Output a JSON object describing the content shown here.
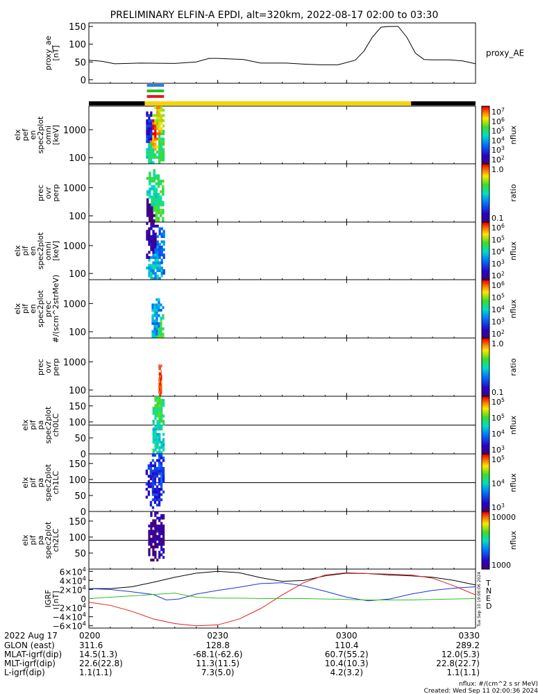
{
  "title": "PRELIMINARY ELFIN-A EPDI, alt=320km, 2022-08-17 02:00 to 03:30",
  "colors": {
    "proxy_line": "#000000",
    "black_bar": "#000000",
    "yellow_bar": "#f5d400",
    "mode_bars": [
      "#2a7de1",
      "#23c41a",
      "#e21c1c"
    ],
    "hline": "#000000",
    "b_total": "#000000",
    "b_n": "#1f2ee0",
    "b_e": "#e21c1c",
    "b_d": "#2cc01e"
  },
  "ephemeris": {
    "date_label": "2022 Aug 17",
    "rows": [
      {
        "label": "GLON (east)",
        "values": [
          "311.6",
          "128.8",
          "110.4",
          "289.2"
        ]
      },
      {
        "label": "MLAT-igrf(dip)",
        "values": [
          "14.5(1.3)",
          "-68.1(-62.6)",
          "60.7(55.2)",
          "12.0(5.3)"
        ]
      },
      {
        "label": "MLT-igrf(dip)",
        "values": [
          "22.6(22.8)",
          "11.3(11.5)",
          "10.4(10.3)",
          "22.8(22.7)"
        ]
      },
      {
        "label": "L-igrf(dip)",
        "values": [
          "1.1(1.1)",
          "7.3(5.0)",
          "4.2(3.2)",
          "1.1(1.1)"
        ]
      }
    ]
  },
  "footer": {
    "units": "nflux: #/(cm^2 s sr MeV)",
    "created": "Created: Wed Sep 11 02:00:36 2024"
  },
  "chart_data": [
    {
      "type": "line",
      "id": "proxy_ae",
      "ylabel": [
        "proxy_ae",
        "[nT]"
      ],
      "series_label": "proxy_AE",
      "xlim": [
        0,
        90
      ],
      "ylim": [
        -10,
        160
      ],
      "yticks": [
        0,
        50,
        100,
        150
      ],
      "x": [
        0,
        3,
        6,
        12,
        20,
        25,
        28,
        30,
        36,
        40,
        46,
        50,
        54,
        58,
        62,
        64,
        66,
        68,
        70,
        72,
        74,
        76,
        78,
        80,
        82,
        84,
        87,
        90
      ],
      "y": [
        55,
        52,
        45,
        47,
        46,
        50,
        60,
        60,
        57,
        47,
        47,
        44,
        42,
        42,
        55,
        80,
        120,
        148,
        150,
        150,
        120,
        75,
        57,
        56,
        56,
        56,
        53,
        45
      ]
    },
    {
      "type": "table",
      "id": "mode_bar",
      "segments": [
        {
          "from": 0,
          "to": 13,
          "state": "black"
        },
        {
          "from": 13,
          "to": 75,
          "state": "yellow"
        },
        {
          "from": 75,
          "to": 90,
          "state": "black"
        }
      ],
      "mode_markers_x": [
        13.5,
        17.5
      ]
    },
    {
      "type": "heatmap",
      "id": "elx_pef_en_spec2plot_omni",
      "ylabel": [
        "elx",
        "pef",
        "en",
        "spec2plot",
        "omni",
        "[keV]"
      ],
      "yscale": "log",
      "ylim": [
        60,
        7000
      ],
      "yticks": [
        100,
        1000
      ],
      "x_range": [
        13.3,
        17.6
      ],
      "colorbar": {
        "label": "nflux",
        "scale": "log",
        "ticks": [
          "10^7",
          "10^6",
          "10^5",
          "10^4",
          "10^3",
          "10^2"
        ]
      },
      "blobs": [
        {
          "x": 15.5,
          "e": 900,
          "v": 0.97
        },
        {
          "x": 15.2,
          "e": 400,
          "v": 0.88
        },
        {
          "x": 16.0,
          "e": 1800,
          "v": 0.8
        },
        {
          "x": 14.6,
          "e": 150,
          "v": 0.55
        },
        {
          "x": 16.8,
          "e": 250,
          "v": 0.6
        },
        {
          "x": 14.2,
          "e": 800,
          "v": 0.2
        }
      ]
    },
    {
      "type": "heatmap",
      "id": "prec_ovr_perp_1",
      "ylabel": [
        "prec",
        "ovr",
        "perp"
      ],
      "yscale": "log",
      "ylim": [
        60,
        7000
      ],
      "yticks": [
        100,
        1000
      ],
      "x_range": [
        13.4,
        17.5
      ],
      "colorbar": {
        "label": "ratio",
        "scale": "log",
        "ticks": [
          "1.0",
          "0.1"
        ]
      },
      "blobs": [
        {
          "x": 15.2,
          "e": 500,
          "v": 0.55
        },
        {
          "x": 16.2,
          "e": 300,
          "v": 0.6
        },
        {
          "x": 14.0,
          "e": 90,
          "v": 0.05
        }
      ]
    },
    {
      "type": "heatmap",
      "id": "elx_pif_en_spec2plot_omni",
      "ylabel": [
        "elx",
        "pif",
        "en",
        "spec2plot",
        "omni",
        "[keV]"
      ],
      "yscale": "log",
      "ylim": [
        60,
        7000
      ],
      "yticks": [
        100,
        1000
      ],
      "x_range": [
        13.3,
        17.7
      ],
      "colorbar": {
        "label": "nflux",
        "scale": "log",
        "ticks": [
          "10^6",
          "10^5",
          "10^4",
          "10^3",
          "10^2"
        ]
      },
      "blobs": [
        {
          "x": 15.5,
          "e": 250,
          "v": 0.45
        },
        {
          "x": 16.3,
          "e": 600,
          "v": 0.35
        },
        {
          "x": 14.8,
          "e": 1200,
          "v": 0.1
        }
      ]
    },
    {
      "type": "heatmap",
      "id": "elx_pif_en_spec2plot_prec",
      "ylabel": [
        "elx",
        "pif",
        "en",
        "spec2plot",
        "prec",
        "#/(scm^2strMeV)"
      ],
      "yscale": "log",
      "ylim": [
        60,
        7000
      ],
      "yticks": [
        100,
        1000
      ],
      "x_range": [
        14.6,
        17.5
      ],
      "colorbar": {
        "label": "nflux",
        "scale": "log",
        "ticks": [
          "10^6",
          "10^5",
          "10^4",
          "10^3",
          "10^2"
        ]
      },
      "blobs": [
        {
          "x": 16.5,
          "e": 90,
          "v": 0.6
        },
        {
          "x": 15.8,
          "e": 150,
          "v": 0.4
        }
      ]
    },
    {
      "type": "heatmap",
      "id": "prec_ovr_perp_2",
      "ylabel": [
        "prec",
        "ovr",
        "perp"
      ],
      "yscale": "log",
      "ylim": [
        60,
        7000
      ],
      "yticks": [
        100,
        1000
      ],
      "x_range": [
        16.2,
        17.0
      ],
      "colorbar": {
        "label": "ratio",
        "scale": "log",
        "ticks": [
          "1.0",
          "0.1"
        ]
      },
      "blobs": [
        {
          "x": 16.7,
          "e": 85,
          "v": 0.95
        }
      ]
    },
    {
      "type": "heatmap",
      "id": "elx_pif_pa_spec2plot_ch0LC",
      "ylabel": [
        "elx",
        "pif",
        "pa",
        "spec2plot",
        "ch0LC"
      ],
      "ylim": [
        0,
        180
      ],
      "yticks": [
        0,
        50,
        100,
        150
      ],
      "hline": 90,
      "x_range": [
        14.8,
        17.6
      ],
      "colorbar": {
        "label": "nflux",
        "scale": "log",
        "ticks": [
          "10^5",
          "10^5",
          "10^4",
          "10^3"
        ]
      },
      "blobs": [
        {
          "x": 16.2,
          "pa": 130,
          "v": 0.6
        },
        {
          "x": 15.6,
          "pa": 60,
          "v": 0.5
        }
      ]
    },
    {
      "type": "heatmap",
      "id": "elx_pif_pa_spec2plot_ch1LC",
      "ylabel": [
        "elx",
        "pif",
        "pa",
        "spec2plot",
        "ch1LC"
      ],
      "ylim": [
        0,
        180
      ],
      "yticks": [
        0,
        50,
        100,
        150
      ],
      "hline": 90,
      "x_range": [
        13.2,
        17.6
      ],
      "colorbar": {
        "label": "nflux",
        "scale": "log",
        "ticks": [
          "10^5",
          "10^4",
          "10^3"
        ]
      },
      "blobs": [
        {
          "x": 15.3,
          "pa": 90,
          "v": 0.2
        },
        {
          "x": 16.5,
          "pa": 130,
          "v": 0.25
        }
      ]
    },
    {
      "type": "heatmap",
      "id": "elx_pif_pa_spec2plot_ch2LC",
      "ylabel": [
        "elx",
        "pif",
        "pa",
        "spec2plot",
        "ch2LC"
      ],
      "ylim": [
        0,
        180
      ],
      "yticks": [
        50,
        100,
        150
      ],
      "hline": 90,
      "x_range": [
        13.8,
        17.6
      ],
      "colorbar": {
        "label": "nflux",
        "scale": "log",
        "ticks": [
          "10000",
          "1000"
        ]
      },
      "blobs": [
        {
          "x": 15.4,
          "pa": 100,
          "v": 0.05
        },
        {
          "x": 16.5,
          "pa": 110,
          "v": 0.1
        }
      ]
    },
    {
      "type": "line",
      "id": "igrf",
      "ylabel": [
        "IGRF",
        "[nT]"
      ],
      "xlim": [
        0,
        90
      ],
      "ylim": [
        -65000,
        65000
      ],
      "yticks": [
        {
          "v": 60000,
          "label": "6×10^4"
        },
        {
          "v": 40000,
          "label": "4×10^4"
        },
        {
          "v": 20000,
          "label": "2×10^4"
        },
        {
          "v": 0,
          "label": "0"
        },
        {
          "v": -20000,
          "label": "−2×10^4"
        },
        {
          "v": -40000,
          "label": "−4×10^4"
        },
        {
          "v": -60000,
          "label": "−6×10^4"
        }
      ],
      "legend": [
        "T",
        "N",
        "E",
        "D"
      ],
      "side_note": "Tue Sep 10 19:06:06 2024",
      "series": [
        {
          "name": "T",
          "x": [
            0,
            5,
            10,
            15,
            20,
            25,
            30,
            35,
            40,
            45,
            50,
            55,
            60,
            65,
            70,
            75,
            80,
            85,
            90
          ],
          "y": [
            22000,
            22000,
            26000,
            36000,
            47000,
            56000,
            60000,
            57000,
            46000,
            38000,
            40000,
            50000,
            56000,
            55000,
            52000,
            50000,
            47000,
            40000,
            30000
          ]
        },
        {
          "name": "N",
          "x": [
            0,
            5,
            10,
            15,
            18,
            21,
            25,
            30,
            35,
            40,
            45,
            50,
            55,
            60,
            65,
            70,
            75,
            80,
            85,
            90
          ],
          "y": [
            22000,
            20000,
            15000,
            9000,
            -3000,
            -1000,
            10000,
            18000,
            25000,
            33000,
            35000,
            28000,
            16000,
            3000,
            -5000,
            -1000,
            10000,
            18000,
            23000,
            26000
          ]
        },
        {
          "name": "E",
          "x": [
            0,
            5,
            10,
            15,
            20,
            25,
            30,
            35,
            40,
            45,
            50,
            55,
            60,
            65,
            70,
            75,
            80,
            85,
            90
          ],
          "y": [
            -8000,
            -15000,
            -28000,
            -45000,
            -55000,
            -60000,
            -58000,
            -45000,
            -22000,
            8000,
            35000,
            52000,
            57000,
            55000,
            54000,
            52000,
            45000,
            28000,
            8000
          ]
        },
        {
          "name": "D",
          "x": [
            0,
            5,
            10,
            15,
            20,
            25,
            30,
            35,
            40,
            45,
            50,
            55,
            60,
            65,
            70,
            75,
            80,
            85,
            90
          ],
          "y": [
            0,
            3000,
            6000,
            9000,
            12000,
            3000,
            1000,
            1000,
            0,
            0,
            0,
            -1000,
            -2000,
            -3000,
            -3000,
            -3000,
            -2000,
            -1000,
            0
          ]
        }
      ]
    }
  ],
  "x_axis": {
    "ticks": [
      {
        "x": 0,
        "label": "0200"
      },
      {
        "x": 30,
        "label": "0230"
      },
      {
        "x": 60,
        "label": "0300"
      },
      {
        "x": 90,
        "label": "0330"
      }
    ]
  }
}
